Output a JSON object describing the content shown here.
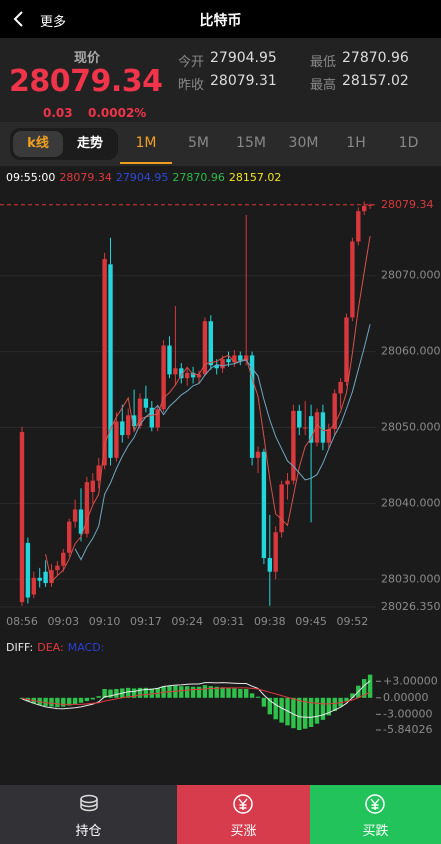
{
  "header": {
    "back": "更多",
    "title": "比特币"
  },
  "quote": {
    "label": "现价",
    "price": "28079.34",
    "change": "0.03",
    "change_pct": "0.0002%",
    "stats": [
      {
        "label": "今开",
        "value": "27904.95"
      },
      {
        "label": "昨收",
        "value": "28079.31"
      },
      {
        "label": "最低",
        "value": "27870.96"
      },
      {
        "label": "最高",
        "value": "28157.02"
      }
    ]
  },
  "tabs": {
    "modes": [
      "k线",
      "走势"
    ],
    "intervals": [
      "1M",
      "5M",
      "15M",
      "30M",
      "1H",
      "1D"
    ]
  },
  "chart_data": [
    {
      "type": "candlestick",
      "info_time": "09:55:00",
      "info_values": [
        28079.34,
        27904.95,
        27870.96,
        28157.02
      ],
      "info_colors": [
        "#e0393e",
        "#2f49d8",
        "#2fb84a",
        "#f2e21f"
      ],
      "up_color": "#d8383c",
      "down_color": "#22d6dc",
      "last_price": 28079.34,
      "last_price_color": "#d8383c",
      "categories": [
        "08:56",
        null,
        null,
        null,
        null,
        null,
        null,
        "09:03",
        null,
        null,
        null,
        null,
        null,
        null,
        "09:10",
        null,
        null,
        null,
        null,
        null,
        null,
        "09:17",
        null,
        null,
        null,
        null,
        null,
        null,
        "09:24",
        null,
        null,
        null,
        null,
        null,
        null,
        "09:31",
        null,
        null,
        null,
        null,
        null,
        null,
        "09:38",
        null,
        null,
        null,
        null,
        null,
        null,
        "09:45",
        null,
        null,
        null,
        null,
        null,
        null,
        "09:52",
        null,
        null,
        null
      ],
      "candles": [
        [
          28027.0,
          28050.1,
          28026.5,
          28049.4
        ],
        [
          28034.8,
          28035.5,
          28026.8,
          28027.6
        ],
        [
          28028.0,
          28031.0,
          28027.5,
          28030.2
        ],
        [
          28030.2,
          28031.5,
          28028.9,
          28029.8
        ],
        [
          28031.0,
          28032.5,
          28029.0,
          28029.5
        ],
        [
          28029.5,
          28032.0,
          28029.0,
          28031.2
        ],
        [
          28031.2,
          28032.4,
          28030.5,
          28031.8
        ],
        [
          28031.8,
          28034.0,
          28031.0,
          28033.5
        ],
        [
          28033.5,
          28038.0,
          28033.0,
          28037.6
        ],
        [
          28037.6,
          28040.5,
          28036.8,
          28039.2
        ],
        [
          28039.2,
          28042.0,
          28035.0,
          28036.0
        ],
        [
          28036.0,
          28043.5,
          28035.5,
          28042.8
        ],
        [
          28041.5,
          28044.0,
          28040.0,
          28043.0
        ],
        [
          28043.0,
          28046.0,
          28042.0,
          28045.0
        ],
        [
          28045.0,
          28073.0,
          28044.5,
          28072.2
        ],
        [
          28071.5,
          28075.0,
          28045.0,
          28046.0
        ],
        [
          28046.0,
          28052.0,
          28045.5,
          28050.8
        ],
        [
          28050.8,
          28053.0,
          28048.0,
          28049.0
        ],
        [
          28049.0,
          28052.5,
          28048.5,
          28051.6
        ],
        [
          28051.6,
          28055.0,
          28049.5,
          28050.2
        ],
        [
          28050.2,
          28054.5,
          28049.8,
          28053.8
        ],
        [
          28053.8,
          28055.5,
          28052.0,
          28052.6
        ],
        [
          28052.6,
          28053.5,
          28049.5,
          28050.0
        ],
        [
          28050.0,
          28053.0,
          28049.5,
          28052.4
        ],
        [
          28052.4,
          28061.5,
          28052.0,
          28060.8
        ],
        [
          28060.8,
          28062.0,
          28056.5,
          28057.0
        ],
        [
          28057.0,
          28066.0,
          28055.5,
          28057.8
        ],
        [
          28057.8,
          28058.5,
          28055.8,
          28056.5
        ],
        [
          28056.5,
          28058.0,
          28055.5,
          28057.2
        ],
        [
          28057.2,
          28058.0,
          28055.8,
          28056.6
        ],
        [
          28056.6,
          28057.5,
          28055.8,
          28057.0
        ],
        [
          28057.0,
          28064.5,
          28056.8,
          28064.0
        ],
        [
          28064.0,
          28064.8,
          28057.6,
          28058.2
        ],
        [
          28058.2,
          28059.0,
          28057.0,
          28057.8
        ],
        [
          28057.8,
          28059.5,
          28057.2,
          28059.0
        ],
        [
          28059.0,
          28060.0,
          28058.0,
          28058.6
        ],
        [
          28058.6,
          28060.2,
          28058.0,
          28059.5
        ],
        [
          28059.5,
          28060.0,
          28058.2,
          28058.8
        ],
        [
          28058.8,
          28078.0,
          28058.2,
          28059.5
        ],
        [
          28059.5,
          28060.0,
          28045.0,
          28046.0
        ],
        [
          28046.0,
          28047.5,
          28044.0,
          28046.8
        ],
        [
          28046.8,
          28047.2,
          28032.0,
          28032.8
        ],
        [
          28032.8,
          28038.5,
          28026.5,
          28031.0
        ],
        [
          28031.0,
          28037.0,
          28030.0,
          28036.2
        ],
        [
          28036.2,
          28043.0,
          28035.5,
          28042.5
        ],
        [
          28042.5,
          28044.0,
          28040.5,
          28043.0
        ],
        [
          28043.0,
          28053.0,
          28042.5,
          28052.2
        ],
        [
          28052.2,
          28053.0,
          28049.0,
          28050.0
        ],
        [
          28050.0,
          28053.5,
          28049.0,
          28050.0
        ],
        [
          28051.5,
          28053.0,
          28037.5,
          28048.0
        ],
        [
          28048.0,
          28052.5,
          28047.5,
          28052.0
        ],
        [
          28052.0,
          28053.0,
          28047.0,
          28048.0
        ],
        [
          28048.0,
          28050.5,
          28047.2,
          28049.8
        ],
        [
          28049.8,
          28055.0,
          28049.0,
          28054.5
        ],
        [
          28054.5,
          28056.5,
          28052.5,
          28056.0
        ],
        [
          28056.0,
          28065.0,
          28055.5,
          28064.5
        ],
        [
          28064.5,
          28075.0,
          28064.0,
          28074.5
        ],
        [
          28074.5,
          28079.0,
          28074.0,
          28078.5
        ],
        [
          28078.5,
          28079.8,
          28078.0,
          28079.2
        ],
        [
          28079.2,
          28079.5,
          28078.8,
          28079.34
        ]
      ],
      "ma_lines": [
        {
          "color": "#d9504a",
          "values": [
            null,
            null,
            null,
            null,
            28033.3,
            28029.7,
            28030.5,
            28031.2,
            28032.7,
            28034.7,
            28035.6,
            28037.8,
            28039.8,
            28041.2,
            28047.8,
            28049.8,
            28051.4,
            28052.6,
            28053.9,
            28049.5,
            28051.1,
            28051.4,
            28051.6,
            28051.8,
            28053.9,
            28054.6,
            28055.6,
            28056.9,
            28057.9,
            28057.0,
            28057.0,
            28058.3,
            28058.6,
            28058.7,
            28059.2,
            28059.5,
            28058.6,
            28058.7,
            28059.1,
            28056.5,
            28054.1,
            28048.8,
            28043.2,
            28038.6,
            28037.9,
            28037.1,
            28041.0,
            28044.8,
            28047.5,
            28048.6,
            28050.4,
            28049.6,
            28049.6,
            28050.5,
            28052.1,
            28054.6,
            28059.8,
            28065.6,
            28070.5,
            28075.2
          ]
        },
        {
          "color": "#6fa7c0",
          "values": [
            null,
            null,
            null,
            null,
            null,
            null,
            null,
            null,
            null,
            28034.0,
            28032.6,
            28034.2,
            28035.4,
            28037.0,
            28041.2,
            28042.7,
            28044.6,
            28046.2,
            28047.6,
            28048.7,
            28050.4,
            28051.4,
            28052.1,
            28052.9,
            28051.7,
            28052.8,
            28053.5,
            28054.3,
            28054.8,
            28055.5,
            28055.8,
            28056.9,
            28057.8,
            28058.3,
            28058.1,
            28058.3,
            28058.4,
            28058.7,
            28058.9,
            28057.8,
            28056.8,
            28053.7,
            28051.0,
            28048.8,
            28047.2,
            28045.6,
            28044.9,
            28044.0,
            28043.1,
            28043.3,
            28043.8,
            28045.3,
            28047.2,
            28049.0,
            28050.4,
            28052.5,
            28054.7,
            28057.6,
            28060.5,
            28063.6
          ]
        }
      ],
      "ylim": [
        28026.35,
        28080.5
      ],
      "yticks": [
        {
          "value": 28026.35,
          "label": "28026.3500"
        },
        {
          "value": 28030,
          "label": "28030.0000"
        },
        {
          "value": 28040,
          "label": "28040.0000"
        },
        {
          "value": 28050,
          "label": "28050.0000"
        },
        {
          "value": 28060,
          "label": "28060.0000"
        },
        {
          "value": 28070,
          "label": "28070.0000"
        }
      ],
      "grid": true
    },
    {
      "type": "macd",
      "bar_color": "#2ec24c",
      "series": [
        {
          "name": "DIFF:",
          "color": "#e8e8e8",
          "values": [
            -0.2,
            -0.6,
            -1.0,
            -1.35,
            -1.65,
            -1.8,
            -1.95,
            -2.0,
            -1.9,
            -1.8,
            -1.65,
            -1.4,
            -1.15,
            -0.75,
            0.2,
            0.35,
            0.6,
            0.85,
            1.1,
            1.15,
            1.4,
            1.5,
            1.55,
            1.7,
            2.05,
            2.2,
            2.3,
            2.35,
            2.45,
            2.5,
            2.5,
            2.75,
            2.75,
            2.7,
            2.75,
            2.7,
            2.65,
            2.6,
            2.6,
            2.1,
            1.7,
            0.5,
            -0.5,
            -1.25,
            -1.85,
            -2.4,
            -2.95,
            -3.42,
            -3.5,
            -3.55,
            -3.35,
            -3.1,
            -2.7,
            -2.2,
            -1.7,
            -1.0,
            0.0,
            1.1,
            2.2,
            3.1
          ]
        },
        {
          "name": "DEA:",
          "color": "#e0393e",
          "values": [
            -0.1,
            -0.3,
            -0.5,
            -0.7,
            -0.9,
            -1.0,
            -1.1,
            -1.2,
            -1.2,
            -1.2,
            -1.2,
            -1.1,
            -1.0,
            -0.9,
            -0.6,
            -0.4,
            -0.2,
            0.0,
            0.2,
            0.3,
            0.5,
            0.6,
            0.7,
            0.8,
            1.0,
            1.1,
            1.2,
            1.3,
            1.4,
            1.5,
            1.5,
            1.6,
            1.7,
            1.7,
            1.8,
            1.8,
            1.8,
            1.8,
            1.8,
            1.7,
            1.6,
            1.3,
            1.0,
            0.7,
            0.4,
            0.1,
            -0.2,
            -0.5,
            -0.7,
            -0.9,
            -1.0,
            -1.1,
            -1.1,
            -1.0,
            -0.9,
            -0.7,
            -0.4,
            0.0,
            0.5,
            1.0
          ]
        },
        {
          "name": "MACD:",
          "color": "#2a3fd0",
          "values": [
            -0.2,
            -0.6,
            -1.0,
            -1.3,
            -1.5,
            -1.6,
            -1.7,
            -1.6,
            -1.4,
            -1.2,
            -0.9,
            -0.6,
            -0.3,
            0.3,
            1.6,
            1.5,
            1.6,
            1.7,
            1.8,
            1.7,
            1.8,
            1.8,
            1.7,
            1.8,
            2.1,
            2.2,
            2.2,
            2.1,
            2.1,
            2.0,
            2.0,
            2.3,
            2.1,
            2.0,
            1.9,
            1.8,
            1.7,
            1.6,
            1.6,
            0.8,
            0.2,
            -1.6,
            -3.0,
            -3.9,
            -4.5,
            -5.0,
            -5.5,
            -5.84026,
            -5.6,
            -5.3,
            -4.7,
            -4.0,
            -3.2,
            -2.4,
            -1.6,
            -0.6,
            0.8,
            2.2,
            3.4,
            4.2
          ]
        }
      ],
      "ylim": [
        -5.84026,
        4.5
      ],
      "yticks": [
        {
          "value": 3,
          "label": "+3.00000"
        },
        {
          "value": 0,
          "label": "0.00000"
        },
        {
          "value": -3,
          "label": "-3.00000"
        },
        {
          "value": -5.84026,
          "label": "-5.84026"
        }
      ]
    }
  ],
  "footer": {
    "buttons": [
      "持仓",
      "买涨",
      "买跌"
    ]
  }
}
